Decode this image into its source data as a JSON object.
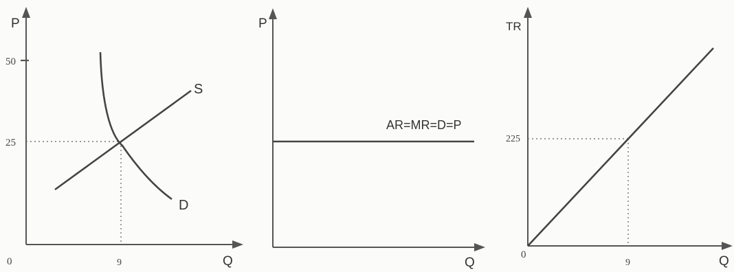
{
  "panel_market": {
    "y_axis_label": "P",
    "x_axis_label": "Q",
    "origin_label": "0",
    "tick_50": "50",
    "tick_25": "25",
    "tick_9": "9",
    "supply_label": "S",
    "demand_label": "D"
  },
  "panel_firm_price": {
    "y_axis_label": "P",
    "x_axis_label": "Q",
    "line_label": "AR=MR=D=P"
  },
  "panel_total_revenue": {
    "y_axis_label": "TR",
    "x_axis_label": "Q",
    "origin_label": "0",
    "tick_225": "225",
    "tick_9": "9"
  }
}
